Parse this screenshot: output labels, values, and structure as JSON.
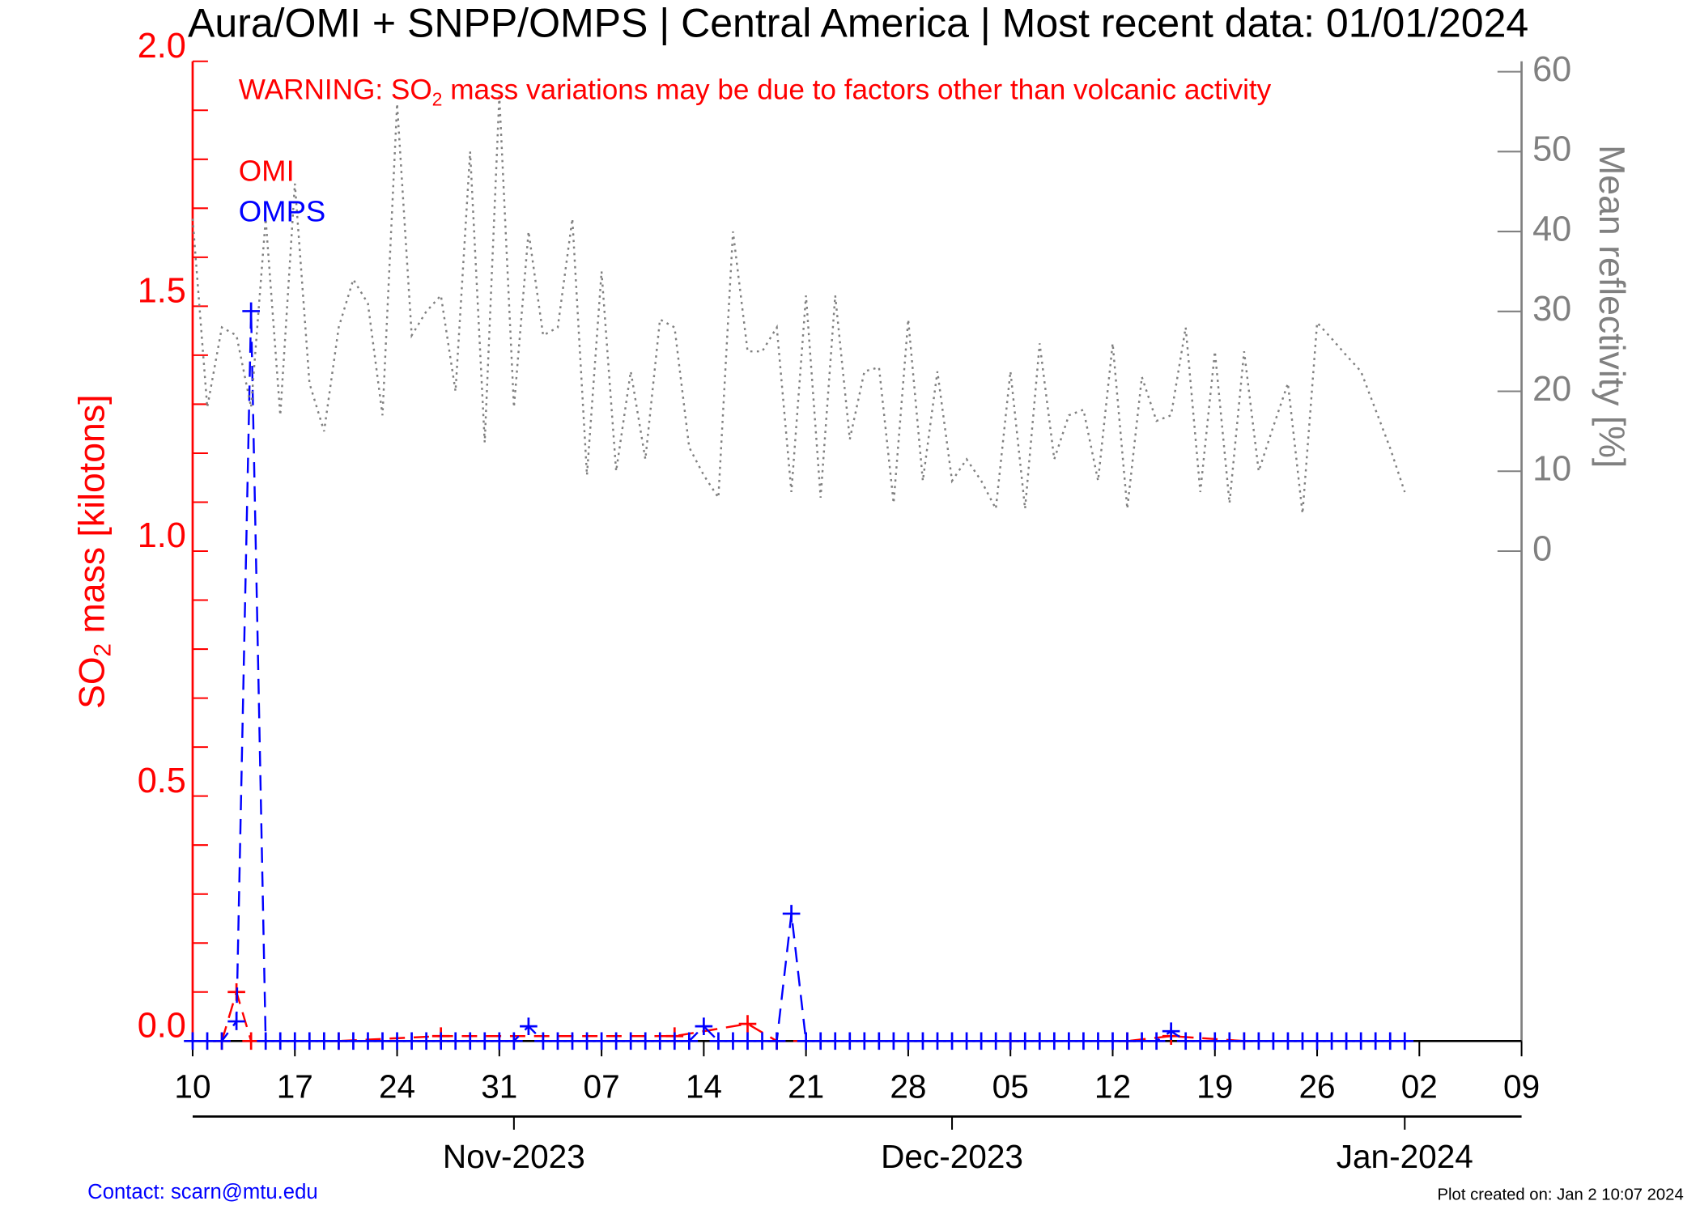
{
  "chart_data": {
    "type": "line",
    "title": "Aura/OMI + SNPP/OMPS | Central America | Most recent data: 01/01/2024",
    "warning": [
      "WARNING: SO",
      "2",
      " mass variations may be due to factors other than volcanic activity"
    ],
    "ylabel": [
      "SO",
      "2",
      " mass [kilotons]"
    ],
    "y2label": "Mean reflectivity [%]",
    "contact": "Contact: scarn@mtu.edu",
    "created": "Plot created on: Jan  2 10:07 2024",
    "xlim": [
      "2023-10-10",
      "2024-01-09"
    ],
    "xticks": [
      {
        "value": "2023-10-10",
        "label": "10"
      },
      {
        "value": "2023-10-17",
        "label": "17"
      },
      {
        "value": "2023-10-24",
        "label": "24"
      },
      {
        "value": "2023-10-31",
        "label": "31"
      },
      {
        "value": "2023-11-07",
        "label": "07"
      },
      {
        "value": "2023-11-14",
        "label": "14"
      },
      {
        "value": "2023-11-21",
        "label": "21"
      },
      {
        "value": "2023-11-28",
        "label": "28"
      },
      {
        "value": "2023-12-05",
        "label": "05"
      },
      {
        "value": "2023-12-12",
        "label": "12"
      },
      {
        "value": "2023-12-19",
        "label": "19"
      },
      {
        "value": "2023-12-26",
        "label": "26"
      },
      {
        "value": "2024-01-02",
        "label": "02"
      },
      {
        "value": "2024-01-09",
        "label": "09"
      }
    ],
    "month_ticks": [
      {
        "value": "2023-11-01",
        "label": "Nov-2023"
      },
      {
        "value": "2023-12-01",
        "label": "Dec-2023"
      },
      {
        "value": "2024-01-01",
        "label": "Jan-2024"
      }
    ],
    "ylim": [
      0,
      2.0
    ],
    "yticks": [
      {
        "value": 0,
        "label": "0.0"
      },
      {
        "value": 0.5,
        "label": "0.5"
      },
      {
        "value": 1.0,
        "label": "1.0"
      },
      {
        "value": 1.5,
        "label": "1.5"
      },
      {
        "value": 2.0,
        "label": "2.0"
      }
    ],
    "yminorticks": [
      0.1,
      0.2,
      0.3,
      0.4,
      0.6,
      0.7,
      0.8,
      0.9,
      1.1,
      1.2,
      1.3,
      1.4,
      1.6,
      1.7,
      1.8,
      1.9
    ],
    "y2lim": [
      -61.3,
      61.3
    ],
    "y2ticks": [
      0,
      10,
      20,
      30,
      40,
      50,
      60
    ],
    "series": [
      {
        "name": "OMI",
        "color": "#ff0000",
        "marker": true,
        "x": [
          "2023-10-12",
          "2023-10-13",
          "2023-10-14",
          "2023-10-20",
          "2023-10-27",
          "2023-11-12",
          "2023-11-17",
          "2023-11-19",
          "2023-12-05",
          "2023-12-13",
          "2023-12-16",
          "2023-12-21"
        ],
        "values": [
          0,
          0.1,
          0,
          0,
          0.01,
          0.01,
          0.035,
          0,
          0,
          0,
          0.01,
          0
        ]
      },
      {
        "name": "OMPS",
        "color": "#0000ff",
        "marker": true,
        "x": [
          "2023-10-10",
          "2023-10-11",
          "2023-10-12",
          "2023-10-13",
          "2023-10-14",
          "2023-10-15",
          "2023-10-16",
          "2023-10-17",
          "2023-10-18",
          "2023-10-19",
          "2023-10-20",
          "2023-10-21",
          "2023-10-22",
          "2023-10-23",
          "2023-10-24",
          "2023-10-25",
          "2023-10-26",
          "2023-10-27",
          "2023-10-28",
          "2023-10-29",
          "2023-10-30",
          "2023-10-31",
          "2023-11-01",
          "2023-11-02",
          "2023-11-03",
          "2023-11-04",
          "2023-11-05",
          "2023-11-06",
          "2023-11-07",
          "2023-11-08",
          "2023-11-09",
          "2023-11-10",
          "2023-11-11",
          "2023-11-12",
          "2023-11-13",
          "2023-11-14",
          "2023-11-15",
          "2023-11-16",
          "2023-11-17",
          "2023-11-18",
          "2023-11-19",
          "2023-11-20",
          "2023-11-21",
          "2023-11-22",
          "2023-11-23",
          "2023-11-24",
          "2023-11-25",
          "2023-11-26",
          "2023-11-27",
          "2023-11-28",
          "2023-11-29",
          "2023-11-30",
          "2023-12-01",
          "2023-12-02",
          "2023-12-03",
          "2023-12-04",
          "2023-12-05",
          "2023-12-06",
          "2023-12-07",
          "2023-12-08",
          "2023-12-09",
          "2023-12-10",
          "2023-12-11",
          "2023-12-12",
          "2023-12-13",
          "2023-12-14",
          "2023-12-15",
          "2023-12-16",
          "2023-12-17",
          "2023-12-18",
          "2023-12-19",
          "2023-12-20",
          "2023-12-21",
          "2023-12-22",
          "2023-12-23",
          "2023-12-24",
          "2023-12-25",
          "2023-12-26",
          "2023-12-27",
          "2023-12-28",
          "2023-12-29",
          "2023-12-30",
          "2023-12-31",
          "2024-01-01"
        ],
        "values": [
          0,
          0,
          0,
          0.04,
          1.49,
          0,
          0,
          0,
          0,
          0,
          0,
          0,
          0,
          0,
          0,
          0,
          0,
          0,
          0,
          0,
          0,
          0,
          0,
          0.03,
          0,
          0,
          0,
          0,
          0,
          0,
          0,
          0,
          0,
          0,
          0,
          0.03,
          0,
          0,
          0,
          0,
          0,
          0.26,
          0,
          0,
          0,
          0,
          0,
          0,
          0,
          0,
          0,
          0,
          0,
          0,
          0,
          0,
          0,
          0,
          0,
          0,
          0,
          0,
          0,
          0,
          0,
          0,
          0,
          0.02,
          0,
          0,
          0,
          0,
          0,
          0,
          0,
          0,
          0,
          0,
          0,
          0,
          0,
          0,
          0,
          0
        ]
      },
      {
        "name": "Mean reflectivity",
        "color": "#808080",
        "axis": "y2",
        "legend": false,
        "x": [
          "2023-10-10",
          "2023-10-11",
          "2023-10-12",
          "2023-10-13",
          "2023-10-14",
          "2023-10-15",
          "2023-10-16",
          "2023-10-17",
          "2023-10-18",
          "2023-10-19",
          "2023-10-20",
          "2023-10-21",
          "2023-10-22",
          "2023-10-23",
          "2023-10-24",
          "2023-10-25",
          "2023-10-26",
          "2023-10-27",
          "2023-10-28",
          "2023-10-29",
          "2023-10-30",
          "2023-10-31",
          "2023-11-01",
          "2023-11-02",
          "2023-11-03",
          "2023-11-04",
          "2023-11-05",
          "2023-11-06",
          "2023-11-07",
          "2023-11-08",
          "2023-11-09",
          "2023-11-10",
          "2023-11-11",
          "2023-11-12",
          "2023-11-13",
          "2023-11-14",
          "2023-11-15",
          "2023-11-16",
          "2023-11-17",
          "2023-11-18",
          "2023-11-19",
          "2023-11-20",
          "2023-11-21",
          "2023-11-22",
          "2023-11-23",
          "2023-11-24",
          "2023-11-25",
          "2023-11-26",
          "2023-11-27",
          "2023-11-28",
          "2023-11-29",
          "2023-11-30",
          "2023-12-01",
          "2023-12-02",
          "2023-12-03",
          "2023-12-04",
          "2023-12-05",
          "2023-12-06",
          "2023-12-07",
          "2023-12-08",
          "2023-12-09",
          "2023-12-10",
          "2023-12-11",
          "2023-12-12",
          "2023-12-13",
          "2023-12-14",
          "2023-12-15",
          "2023-12-16",
          "2023-12-17",
          "2023-12-18",
          "2023-12-19",
          "2023-12-20",
          "2023-12-21",
          "2023-12-22",
          "2023-12-23",
          "2023-12-24",
          "2023-12-25",
          "2023-12-26",
          "2023-12-27",
          "2023-12-28",
          "2023-12-29",
          "2023-12-30",
          "2023-12-31",
          "2024-01-01"
        ],
        "values": [
          41.6,
          18,
          28,
          27,
          18,
          41.6,
          17,
          46,
          21,
          15,
          28,
          34,
          31,
          17,
          56,
          27,
          30,
          32,
          20,
          50,
          13.6,
          57,
          18,
          40,
          27,
          28,
          41.6,
          9.5,
          35,
          10,
          22.5,
          11.5,
          29,
          28,
          13,
          9.5,
          6.7,
          40,
          25,
          25,
          28,
          7.4,
          32,
          6.7,
          32,
          14,
          22.5,
          23,
          6,
          29,
          8.8,
          22.5,
          8.8,
          11.5,
          8.8,
          5.3,
          22.5,
          5.3,
          26,
          11.5,
          17,
          17.7,
          8.8,
          26,
          5.3,
          21.8,
          16.3,
          17,
          28,
          7.4,
          25,
          6,
          25,
          10,
          15.6,
          21,
          4.7,
          28.6,
          26.6,
          24.5,
          22.5,
          17.7,
          12.9,
          7.4
        ]
      }
    ]
  }
}
